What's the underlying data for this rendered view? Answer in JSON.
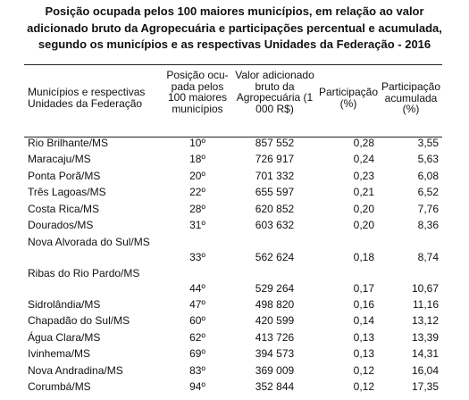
{
  "title": {
    "line1": "Posição ocupada pelos 100 maiores municípios, em relação ao valor",
    "line2": "adicionado bruto da Agropecuária e participações percentual e acumulada,",
    "line3": "segundo os municípios e as respectivas Unidades da Federação - 2016"
  },
  "headers": {
    "municipio": "Municípios e respectivas Unidades da Federação",
    "posicao": "Posição ocu- pada pelos 100 maiores municípios",
    "valor": "Valor adicionado bruto da Agropecuária (1 000 R$)",
    "participacao": "Participação (%)",
    "acumulada": "Participação acumulada (%)"
  },
  "rows": [
    {
      "municipio": "Rio Brilhante/MS",
      "posicao": "10º",
      "valor": "857 552",
      "participacao": "0,28",
      "acumulada": "3,55"
    },
    {
      "municipio": "Maracaju/MS",
      "posicao": "18º",
      "valor": "726 917",
      "participacao": "0,24",
      "acumulada": "5,63"
    },
    {
      "municipio": "Ponta Porã/MS",
      "posicao": "20º",
      "valor": "701 332",
      "participacao": "0,23",
      "acumulada": "6,08"
    },
    {
      "municipio": "Três Lagoas/MS",
      "posicao": "22º",
      "valor": "655 597",
      "participacao": "0,21",
      "acumulada": "6,52"
    },
    {
      "municipio": "Costa Rica/MS",
      "posicao": "28º",
      "valor": "620 852",
      "participacao": "0,20",
      "acumulada": "7,76"
    },
    {
      "municipio": "Dourados/MS",
      "posicao": "31º",
      "valor": "603 632",
      "participacao": "0,20",
      "acumulada": "8,36"
    },
    {
      "municipio": "Nova Alvorada do Sul/MS",
      "posicao": "33º",
      "valor": "562 624",
      "participacao": "0,18",
      "acumulada": "8,74"
    },
    {
      "municipio": "Ribas do Rio Pardo/MS",
      "posicao": "44º",
      "valor": "529 264",
      "participacao": "0,17",
      "acumulada": "10,67"
    },
    {
      "municipio": "Sidrolândia/MS",
      "posicao": "47º",
      "valor": "498 820",
      "participacao": "0,16",
      "acumulada": "11,16"
    },
    {
      "municipio": "Chapadão do Sul/MS",
      "posicao": "60º",
      "valor": "420 599",
      "participacao": "0,14",
      "acumulada": "13,12"
    },
    {
      "municipio": "Água Clara/MS",
      "posicao": "62º",
      "valor": "413 726",
      "participacao": "0,13",
      "acumulada": "13,39"
    },
    {
      "municipio": "Ivinhema/MS",
      "posicao": "69º",
      "valor": "394 573",
      "participacao": "0,13",
      "acumulada": "14,31"
    },
    {
      "municipio": "Nova Andradina/MS",
      "posicao": "83º",
      "valor": "369 009",
      "participacao": "0,12",
      "acumulada": "16,04"
    },
    {
      "municipio": "Corumbá/MS",
      "posicao": "94º",
      "valor": "352 844",
      "participacao": "0,12",
      "acumulada": "17,35"
    }
  ]
}
